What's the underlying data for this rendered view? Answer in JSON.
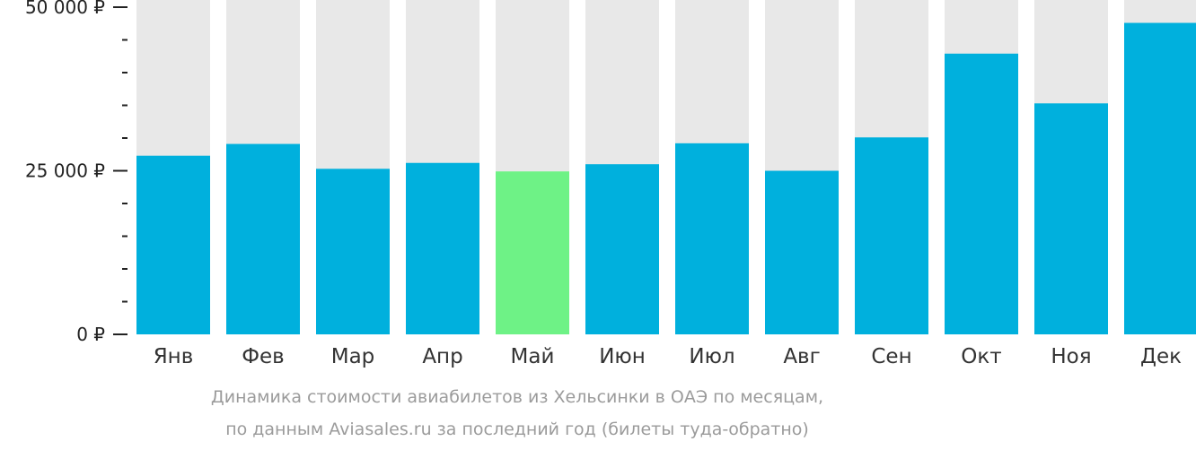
{
  "chart_data": {
    "type": "bar",
    "categories": [
      "Янв",
      "Фев",
      "Мар",
      "Апр",
      "Май",
      "Июн",
      "Июл",
      "Авг",
      "Сен",
      "Окт",
      "Ноя",
      "Дек"
    ],
    "values": [
      27300,
      29100,
      25300,
      26200,
      24900,
      26000,
      29200,
      25000,
      30100,
      42900,
      35300,
      47600
    ],
    "highlight_index": 4,
    "ylim": [
      0,
      50000
    ],
    "yticks": [
      {
        "value": 0,
        "label": "0 ₽"
      },
      {
        "value": 25000,
        "label": "25 000 ₽"
      },
      {
        "value": 50000,
        "label": "50 000 ₽"
      }
    ],
    "minor_tick_step": 5000,
    "colors": {
      "bar": "#00b0dd",
      "highlight": "#6ef286",
      "background_bar": "#e8e8e8",
      "axis": "#222222"
    }
  },
  "caption": {
    "line1": "Динамика стоимости авиабилетов из Хельсинки в ОАЭ по месяцам,",
    "line2": "по данным Aviasales.ru за последний год (билеты туда-обратно)"
  }
}
